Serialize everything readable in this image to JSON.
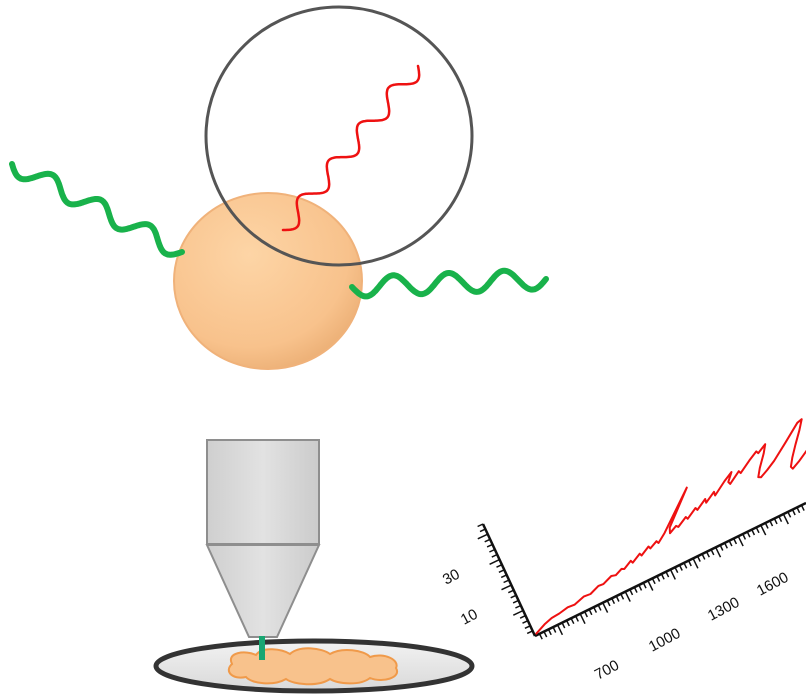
{
  "diagram": {
    "scattering": {
      "particle_color": "#F8C28C",
      "circle_color": "#555555",
      "incident_wave_color": "#19B24B",
      "scattered_wave_color": "#19B24B",
      "raman_wave_color": "#EE1111"
    },
    "microscope": {
      "objective_color": "#D6D6D6",
      "beam_color": "#18A672",
      "dish_color": "#E4E4E4",
      "sample_color": "#F8C28C"
    },
    "spectrum": {
      "line_color": "#EE1111",
      "x_ticks": [
        "700",
        "1000",
        "1300",
        "1600"
      ],
      "y_ticks": [
        "10",
        "30"
      ]
    }
  }
}
